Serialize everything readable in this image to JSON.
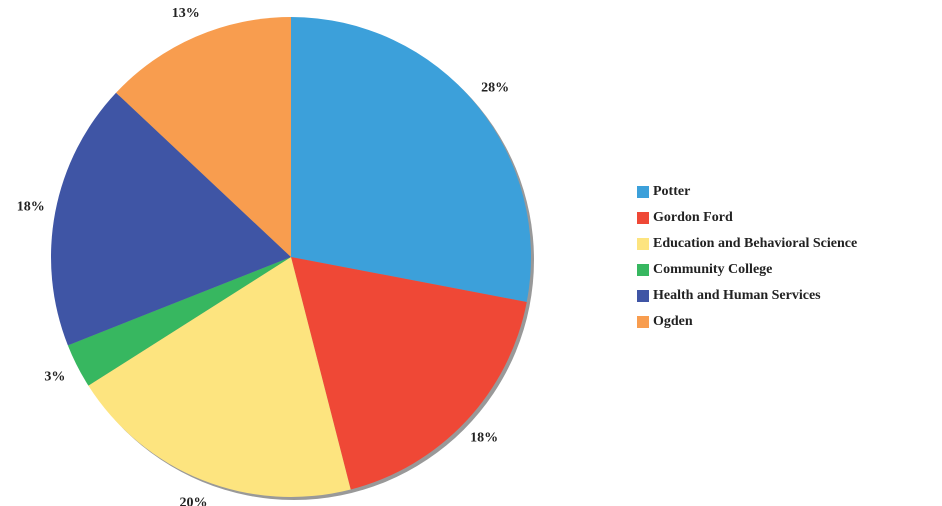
{
  "chart_data": {
    "type": "pie",
    "categories": [
      "Potter",
      "Gordon Ford",
      "Education and Behavioral Science",
      "Community College",
      "Health and Human Services",
      "Ogden"
    ],
    "values": [
      28,
      18,
      20,
      3,
      18,
      13
    ],
    "value_labels": [
      "28%",
      "18%",
      "20%",
      "3%",
      "18%",
      "13%"
    ],
    "colors": [
      "#3ca0da",
      "#ef4836",
      "#fde47f",
      "#37b760",
      "#3f55a5",
      "#f89d4f"
    ],
    "legend": "right"
  }
}
